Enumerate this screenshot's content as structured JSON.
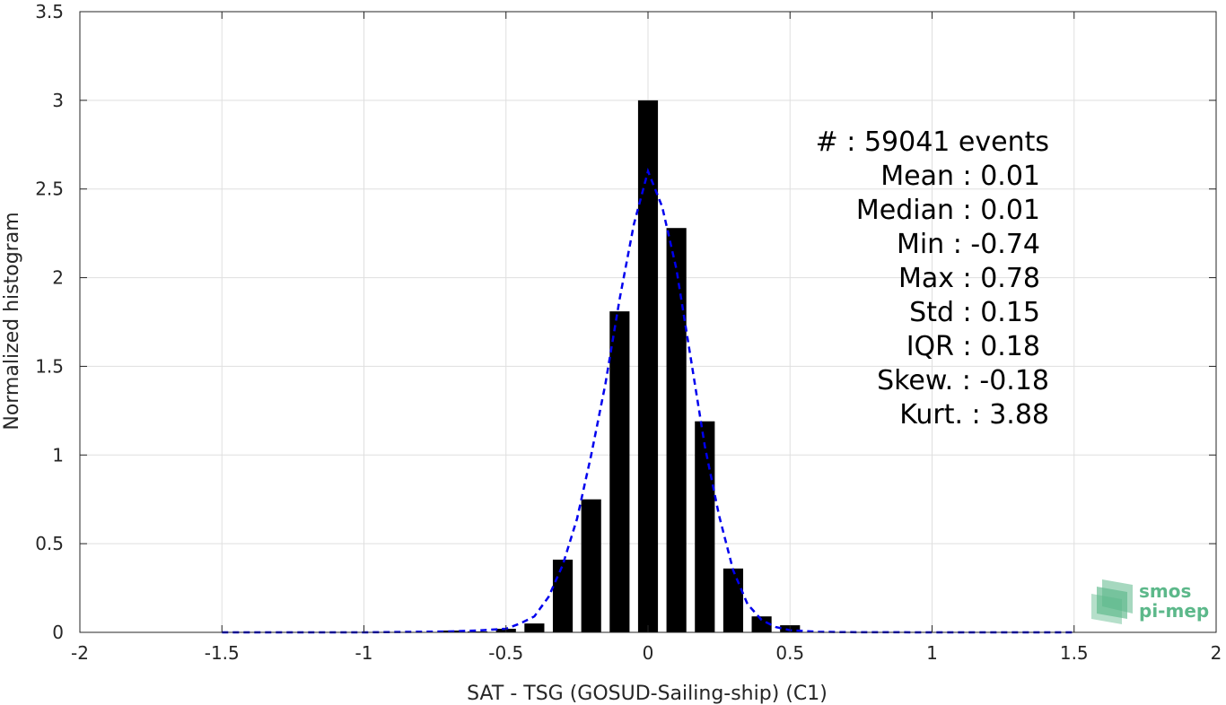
{
  "chart_data": {
    "type": "bar",
    "xlabel": "SAT - TSG (GOSUD-Sailing-ship) (C1)",
    "ylabel": "Normalized histogram",
    "xlim": [
      -2,
      2
    ],
    "ylim": [
      0,
      3.5
    ],
    "grid": true,
    "x_ticks": [
      -2,
      -1.5,
      -1,
      -0.5,
      0,
      0.5,
      1,
      1.5,
      2
    ],
    "y_ticks": [
      0,
      0.5,
      1,
      1.5,
      2,
      2.5,
      3,
      3.5
    ],
    "x_tick_labels": [
      "-2",
      "-1.5",
      "-1",
      "-0.5",
      "0",
      "0.5",
      "1",
      "1.5",
      "2"
    ],
    "y_tick_labels": [
      "0",
      "0.5",
      "1",
      "1.5",
      "2",
      "2.5",
      "3",
      "3.5"
    ],
    "bar_width": 0.07,
    "bars": [
      {
        "x": -0.7,
        "y": 0.01
      },
      {
        "x": -0.6,
        "y": 0.005
      },
      {
        "x": -0.5,
        "y": 0.02
      },
      {
        "x": -0.4,
        "y": 0.05
      },
      {
        "x": -0.3,
        "y": 0.41
      },
      {
        "x": -0.2,
        "y": 0.75
      },
      {
        "x": -0.1,
        "y": 1.81
      },
      {
        "x": 0.0,
        "y": 3.0
      },
      {
        "x": 0.1,
        "y": 2.28
      },
      {
        "x": 0.2,
        "y": 1.19
      },
      {
        "x": 0.3,
        "y": 0.36
      },
      {
        "x": 0.4,
        "y": 0.09
      },
      {
        "x": 0.5,
        "y": 0.04
      }
    ],
    "fit_curve": {
      "style": "dashed",
      "color": "#0000ee",
      "x": [
        -1.5,
        -1.0,
        -0.7,
        -0.6,
        -0.5,
        -0.45,
        -0.4,
        -0.35,
        -0.3,
        -0.25,
        -0.2,
        -0.15,
        -0.1,
        -0.05,
        0.0,
        0.05,
        0.1,
        0.15,
        0.2,
        0.25,
        0.3,
        0.35,
        0.4,
        0.45,
        0.5,
        0.6,
        0.7,
        1.0,
        1.5
      ],
      "y": [
        0,
        0,
        0.005,
        0.01,
        0.02,
        0.05,
        0.09,
        0.2,
        0.38,
        0.64,
        1.0,
        1.4,
        1.88,
        2.3,
        2.6,
        2.4,
        2.05,
        1.55,
        1.05,
        0.66,
        0.35,
        0.16,
        0.07,
        0.03,
        0.012,
        0.003,
        0.001,
        0,
        0
      ]
    }
  },
  "stats": [
    {
      "label": "#  : 59041 events",
      "anchor": "end_wide"
    },
    {
      "label": "Mean : 0.01",
      "anchor": "end"
    },
    {
      "label": "Median : 0.01",
      "anchor": "end"
    },
    {
      "label": "Min : -0.74",
      "anchor": "end"
    },
    {
      "label": "Max : 0.78",
      "anchor": "end"
    },
    {
      "label": "Std : 0.15",
      "anchor": "end"
    },
    {
      "label": "IQR : 0.18",
      "anchor": "end"
    },
    {
      "label": "Skew. : -0.18",
      "anchor": "end_wide"
    },
    {
      "label": "Kurt. : 3.88",
      "anchor": "end_wide"
    }
  ],
  "logo": {
    "line1": "smos",
    "line2": "pi-mep",
    "color": "#5cb88a"
  },
  "colors": {
    "bar": "#000000",
    "grid": "#dfdfdf",
    "axis": "#262626",
    "fit": "#0000ee"
  }
}
